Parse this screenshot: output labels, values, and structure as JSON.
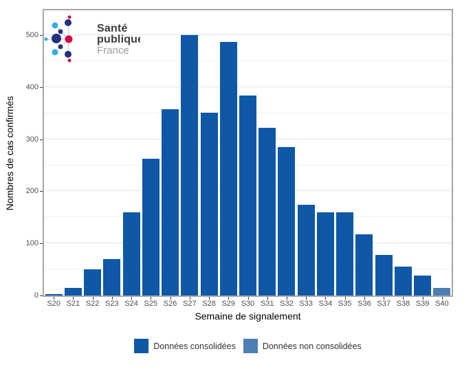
{
  "logo": {
    "name": "Santé publique France",
    "line1": "Santé",
    "line2": "publique",
    "line3": "France"
  },
  "y_axis": {
    "title": "Nombres de cas confirmés",
    "tick_values": [
      0,
      100,
      200,
      300,
      400,
      500
    ]
  },
  "x_axis": {
    "title": "Semaine de signalement"
  },
  "legend": [
    {
      "label": "Données consolidées",
      "color": "#0e58a7"
    },
    {
      "label": "Données non consolidées",
      "color": "#4d7fb3"
    }
  ],
  "chart_data": {
    "type": "bar",
    "title": "",
    "xlabel": "Semaine de signalement",
    "ylabel": "Nombres de cas confirmés",
    "categories": [
      "S20",
      "S21",
      "S22",
      "S23",
      "S24",
      "S25",
      "S26",
      "S27",
      "S28",
      "S29",
      "S30",
      "S31",
      "S32",
      "S33",
      "S34",
      "S35",
      "S36",
      "S37",
      "S38",
      "S39",
      "S40"
    ],
    "values": [
      3,
      15,
      50,
      70,
      160,
      263,
      358,
      500,
      351,
      487,
      384,
      322,
      285,
      174,
      160,
      160,
      118,
      78,
      55,
      38,
      15
    ],
    "consolidated": [
      true,
      true,
      true,
      true,
      true,
      true,
      true,
      true,
      true,
      true,
      true,
      true,
      true,
      true,
      true,
      true,
      true,
      true,
      true,
      true,
      false
    ],
    "series": [
      {
        "name": "Données consolidées",
        "color": "#0e58a7",
        "categories": [
          "S20",
          "S21",
          "S22",
          "S23",
          "S24",
          "S25",
          "S26",
          "S27",
          "S28",
          "S29",
          "S30",
          "S31",
          "S32",
          "S33",
          "S34",
          "S35",
          "S36",
          "S37",
          "S38",
          "S39"
        ]
      },
      {
        "name": "Données non consolidées",
        "color": "#4d7fb3",
        "categories": [
          "S40"
        ]
      }
    ],
    "ylim": [
      0,
      547
    ],
    "gridline_step": 50,
    "grid": true,
    "legend_position": "bottom"
  },
  "colors": {
    "bar_consolidated": "#0e58a7",
    "bar_unconsolidated": "#4d7fb3",
    "gridline_major": "#e4e4e4",
    "gridline_minor": "#f0f0f0",
    "panel_border": "#a6a6a6",
    "axis_text": "#4d4d4d",
    "logo_navy": "#25317e",
    "logo_cyan": "#2eb0e4",
    "logo_pink": "#d4024e"
  }
}
